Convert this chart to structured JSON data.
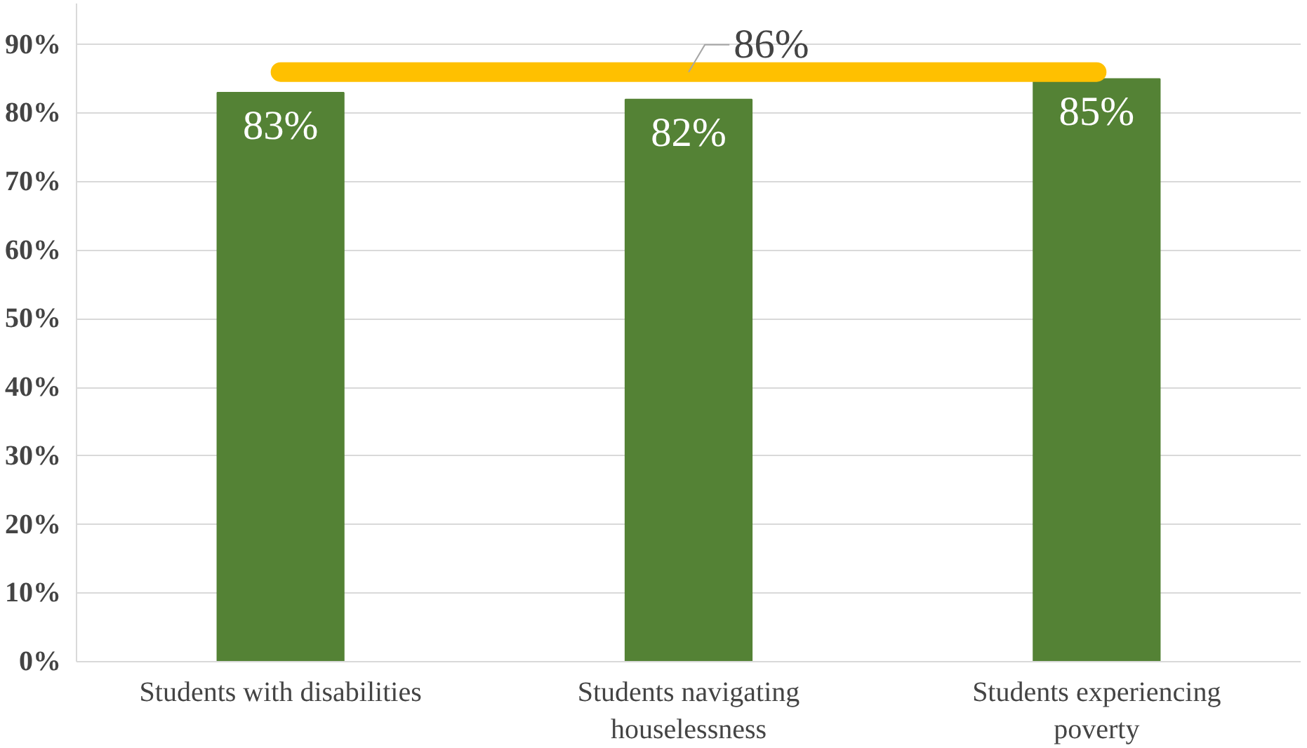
{
  "chart_data": {
    "type": "bar",
    "categories": [
      "Students with disabilities",
      "Students navigating houselessness",
      "Students experiencing poverty"
    ],
    "values": [
      83,
      82,
      85
    ],
    "color": "#548235",
    "data_labels": true,
    "value_labels": [
      "83%",
      "82%",
      "85%"
    ],
    "ylim": [
      0,
      96
    ],
    "yticks": [
      {
        "value": 0,
        "label": "0%"
      },
      {
        "value": 10,
        "label": "10%"
      },
      {
        "value": 20,
        "label": "20%"
      },
      {
        "value": 30,
        "label": "30%"
      },
      {
        "value": 40,
        "label": "40%"
      },
      {
        "value": 50,
        "label": "50%"
      },
      {
        "value": 60,
        "label": "60%"
      },
      {
        "value": 70,
        "label": "70%"
      },
      {
        "value": 80,
        "label": "80%"
      },
      {
        "value": 90,
        "label": "90%"
      }
    ],
    "ref_lines": [
      {
        "axis": "y",
        "value": 86,
        "label": "86%",
        "color": "#ffc000"
      }
    ],
    "grid": "y"
  }
}
